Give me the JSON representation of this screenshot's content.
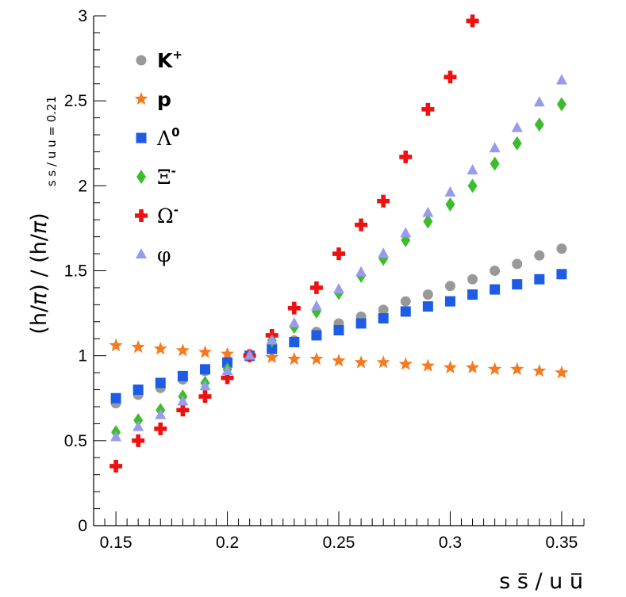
{
  "chart_data": {
    "type": "scatter",
    "xlabel": "s s̄ / u ū",
    "xlabel_parts": [
      "s ",
      "s",
      " / u ",
      "u"
    ],
    "ylabel": "(h/π) / (h/π)",
    "ylabel_parts": [
      "(h/",
      "π",
      ") / (h/",
      "π",
      ")"
    ],
    "ylabel_subscript": "s s̄ / u ū = 0.21",
    "ylabel_subscript_parts": [
      "s ",
      "s",
      " / u ",
      "u",
      " = 0.21"
    ],
    "xlim": [
      0.14,
      0.36
    ],
    "ylim": [
      0,
      3
    ],
    "x_ticks": [
      "0.15",
      "0.2",
      "0.25",
      "0.3",
      "0.35"
    ],
    "x_tick_values": [
      0.15,
      0.2,
      0.25,
      0.3,
      0.35
    ],
    "y_ticks": [
      "0",
      "0.5",
      "1",
      "1.5",
      "2",
      "2.5",
      "3"
    ],
    "y_tick_values": [
      0,
      0.5,
      1,
      1.5,
      2,
      2.5,
      3
    ],
    "legend_position": "top-left",
    "x": [
      0.15,
      0.16,
      0.17,
      0.18,
      0.19,
      0.2,
      0.21,
      0.22,
      0.23,
      0.24,
      0.25,
      0.26,
      0.27,
      0.28,
      0.29,
      0.3,
      0.31,
      0.32,
      0.33,
      0.34,
      0.35
    ],
    "series": [
      {
        "name": "K",
        "sup": "+",
        "marker": "circle",
        "color": "#999999",
        "values": [
          0.72,
          0.77,
          0.81,
          0.86,
          0.91,
          0.96,
          1.0,
          1.04,
          1.09,
          1.14,
          1.19,
          1.23,
          1.27,
          1.32,
          1.36,
          1.41,
          1.45,
          1.5,
          1.54,
          1.59,
          1.63
        ]
      },
      {
        "name": "p",
        "sup": "",
        "marker": "star",
        "color": "#f57a20",
        "values": [
          1.06,
          1.05,
          1.04,
          1.03,
          1.02,
          1.01,
          1.0,
          0.99,
          0.98,
          0.98,
          0.97,
          0.96,
          0.96,
          0.95,
          0.94,
          0.93,
          0.93,
          0.92,
          0.92,
          0.91,
          0.9
        ]
      },
      {
        "name": "Λ",
        "sup": "0",
        "marker": "square",
        "color": "#1e5ce6",
        "values": [
          0.75,
          0.8,
          0.84,
          0.88,
          0.92,
          0.96,
          1.0,
          1.04,
          1.08,
          1.12,
          1.15,
          1.19,
          1.22,
          1.26,
          1.29,
          1.32,
          1.36,
          1.39,
          1.42,
          1.45,
          1.48
        ]
      },
      {
        "name": "Ξ",
        "sup": "-",
        "marker": "diamond",
        "color": "#3dbd2d",
        "values": [
          0.55,
          0.62,
          0.68,
          0.76,
          0.84,
          0.92,
          1.0,
          1.09,
          1.17,
          1.26,
          1.37,
          1.47,
          1.57,
          1.68,
          1.79,
          1.89,
          2.0,
          2.13,
          2.25,
          2.36,
          2.48
        ]
      },
      {
        "name": "Ω",
        "sup": "-",
        "marker": "cross",
        "color": "#ee1111",
        "values": [
          0.35,
          0.5,
          0.57,
          0.68,
          0.76,
          0.87,
          1.0,
          1.12,
          1.28,
          1.4,
          1.6,
          1.77,
          1.91,
          2.17,
          2.45,
          2.64,
          2.97
        ]
      },
      {
        "name": "φ",
        "sup": "",
        "marker": "triangle",
        "color": "#9999ee",
        "values": [
          0.52,
          0.58,
          0.65,
          0.73,
          0.82,
          0.91,
          1.0,
          1.09,
          1.19,
          1.29,
          1.39,
          1.49,
          1.6,
          1.72,
          1.84,
          1.96,
          2.09,
          2.22,
          2.34,
          2.49,
          2.62
        ]
      }
    ]
  }
}
